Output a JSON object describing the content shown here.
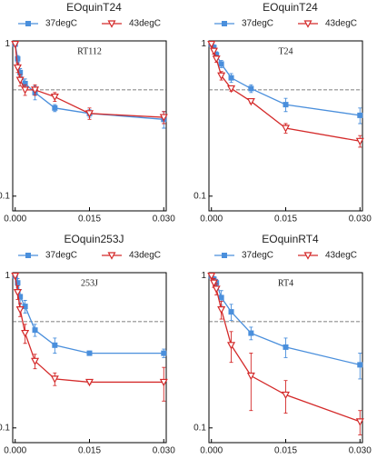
{
  "chart_data": [
    {
      "type": "line",
      "title": "EOquinT24",
      "subtitle": "RT112",
      "log_y": true,
      "reference_line": 0.5,
      "x": [
        0,
        0.0005,
        0.001,
        0.002,
        0.004,
        0.008,
        0.015,
        0.03
      ],
      "xlim": [
        -0.0005,
        0.0305
      ],
      "xticks": [
        {
          "value": 0,
          "label": "0.000"
        },
        {
          "value": 0.015,
          "label": "0.015"
        },
        {
          "value": 0.03,
          "label": "0.030"
        }
      ],
      "ylim": [
        0.08,
        1.05
      ],
      "yticks": [
        0.1,
        1
      ],
      "series": [
        {
          "name": "37degC",
          "color": "#4a8fdc",
          "marker": "square",
          "values": [
            1,
            0.8,
            0.65,
            0.55,
            0.48,
            0.38,
            0.35,
            0.32
          ],
          "errors": [
            0.02,
            0.04,
            0.04,
            0.04,
            0.05,
            0.02,
            0.02,
            0.04
          ]
        },
        {
          "name": "43degC",
          "color": "#d42a2a",
          "marker": "triangle-down",
          "values": [
            1,
            0.7,
            0.58,
            0.5,
            0.5,
            0.45,
            0.35,
            0.33
          ],
          "errors": [
            0.02,
            0.05,
            0.05,
            0.04,
            0.04,
            0.03,
            0.03,
            0.03
          ]
        }
      ]
    },
    {
      "type": "line",
      "title": "EOquinT24",
      "subtitle": "T24",
      "log_y": true,
      "reference_line": 0.5,
      "x": [
        0,
        0.0005,
        0.001,
        0.002,
        0.004,
        0.008,
        0.015,
        0.03
      ],
      "xlim": [
        -0.0005,
        0.0305
      ],
      "xticks": [
        {
          "value": 0,
          "label": "0.000"
        },
        {
          "value": 0.015,
          "label": "0.015"
        },
        {
          "value": 0.03,
          "label": "0.030"
        }
      ],
      "ylim": [
        0.08,
        1.05
      ],
      "yticks": [
        0.1,
        1
      ],
      "series": [
        {
          "name": "37degC",
          "color": "#4a8fdc",
          "marker": "square",
          "values": [
            1,
            0.95,
            0.85,
            0.74,
            0.6,
            0.51,
            0.4,
            0.34
          ],
          "errors": [
            0.02,
            0.04,
            0.04,
            0.04,
            0.04,
            0.03,
            0.04,
            0.04
          ]
        },
        {
          "name": "43degC",
          "color": "#d42a2a",
          "marker": "triangle-down",
          "values": [
            1,
            0.9,
            0.8,
            0.62,
            0.51,
            0.42,
            0.28,
            0.23
          ],
          "errors": [
            0.02,
            0.04,
            0.04,
            0.04,
            0.02,
            0.01,
            0.02,
            0.02
          ]
        }
      ]
    },
    {
      "type": "line",
      "title": "EOquin253J",
      "subtitle": "253J",
      "log_y": true,
      "reference_line": 0.5,
      "x": [
        0,
        0.0005,
        0.001,
        0.002,
        0.004,
        0.008,
        0.015,
        0.03
      ],
      "xlim": [
        -0.0005,
        0.0305
      ],
      "xticks": [
        {
          "value": 0,
          "label": "0.000"
        },
        {
          "value": 0.015,
          "label": "0.015"
        },
        {
          "value": 0.03,
          "label": "0.030"
        }
      ],
      "ylim": [
        0.08,
        1.05
      ],
      "yticks": [
        0.1,
        1
      ],
      "series": [
        {
          "name": "37degC",
          "color": "#4a8fdc",
          "marker": "square",
          "values": [
            1,
            0.9,
            0.73,
            0.63,
            0.44,
            0.35,
            0.31,
            0.31
          ],
          "errors": [
            0.02,
            0.06,
            0.08,
            0.06,
            0.04,
            0.04,
            0.01,
            0.02
          ]
        },
        {
          "name": "43degC",
          "color": "#d42a2a",
          "marker": "triangle-down",
          "values": [
            1,
            0.78,
            0.6,
            0.42,
            0.275,
            0.21,
            0.2,
            0.2
          ],
          "errors": [
            0.02,
            0.08,
            0.06,
            0.06,
            0.03,
            0.02,
            0.005,
            0.05
          ]
        }
      ]
    },
    {
      "type": "line",
      "title": "EOquinRT4",
      "subtitle": "RT4",
      "log_y": true,
      "reference_line": 0.5,
      "x": [
        0,
        0.0005,
        0.001,
        0.002,
        0.004,
        0.008,
        0.015,
        0.03
      ],
      "xlim": [
        -0.0005,
        0.0305
      ],
      "xticks": [
        {
          "value": 0,
          "label": "0.000"
        },
        {
          "value": 0.015,
          "label": "0.015"
        },
        {
          "value": 0.03,
          "label": "0.030"
        }
      ],
      "ylim": [
        0.08,
        1.05
      ],
      "yticks": [
        0.1,
        1
      ],
      "series": [
        {
          "name": "37degC",
          "color": "#4a8fdc",
          "marker": "square",
          "values": [
            1,
            0.95,
            0.9,
            0.72,
            0.58,
            0.42,
            0.34,
            0.26
          ],
          "errors": [
            0.02,
            0.04,
            0.05,
            0.08,
            0.07,
            0.04,
            0.05,
            0.05
          ]
        },
        {
          "name": "43degC",
          "color": "#d42a2a",
          "marker": "triangle-down",
          "values": [
            1,
            0.9,
            0.82,
            0.6,
            0.35,
            0.22,
            0.165,
            0.11
          ],
          "errors": [
            0.02,
            0.06,
            0.07,
            0.08,
            0.08,
            0.09,
            0.04,
            0.02
          ]
        }
      ]
    }
  ]
}
